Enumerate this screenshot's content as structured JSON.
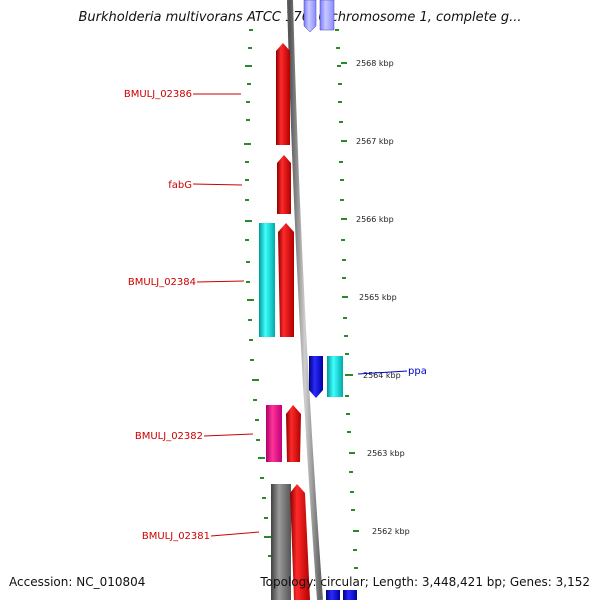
{
  "title": "Burkholderia multivorans ATCC 17616 chromosome 1, complete g...",
  "footer": {
    "accession": "Accession: NC_010804",
    "topology": "Topology: circular; Length: 3,448,421 bp; Genes: 3,152"
  },
  "scale_labels": [
    "2568 kbp",
    "2567 kbp",
    "2566 kbp",
    "2565 kbp",
    "2564 kbp",
    "2563 kbp",
    "2562 kbp"
  ],
  "gene_labels": [
    {
      "name": "BMULJ_02386",
      "color": "#cc0000"
    },
    {
      "name": "fabG",
      "color": "#cc0000"
    },
    {
      "name": "BMULJ_02384",
      "color": "#cc0000"
    },
    {
      "name": "BMULJ_02382",
      "color": "#cc0000"
    },
    {
      "name": "BMULJ_02381",
      "color": "#cc0000"
    },
    {
      "name": "ppa",
      "color": "#0000cc"
    }
  ],
  "colors": {
    "forward_gene": "#ff0000",
    "forward_cds": "#00e5e5",
    "reverse_gene": "#0000ff",
    "reverse_cds": "#00e5e5",
    "pink_feature": "#ff1493",
    "gray_feature": "#808080",
    "backbone": "#999999",
    "gc_ticks": "#2a8a2a"
  }
}
